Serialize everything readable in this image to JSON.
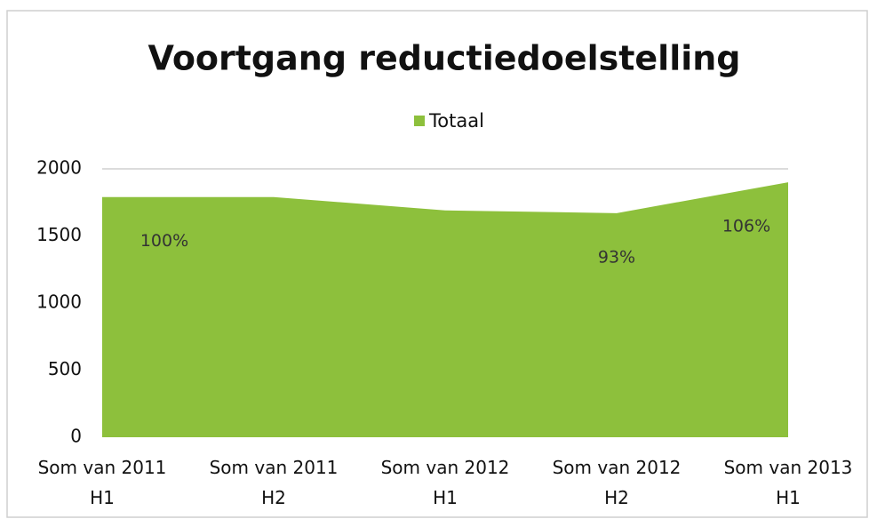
{
  "chart_data": {
    "type": "area",
    "title": "Voortgang reductiedoelstelling",
    "categories": [
      "Som van 2011 H1",
      "Som van 2011 H2",
      "Som van 2012 H1",
      "Som van 2012 H2",
      "Som van 2013 H1"
    ],
    "series": [
      {
        "name": "Totaal",
        "color": "#8dc03c",
        "values": [
          1790,
          1790,
          1690,
          1670,
          1900
        ]
      }
    ],
    "annotations": [
      {
        "text": "100%",
        "at": 0
      },
      {
        "text": "93%",
        "at": 3
      },
      {
        "text": "106%",
        "at": 4
      }
    ],
    "ylim": [
      0,
      2000
    ],
    "yticks": [
      0,
      500,
      1000,
      1500,
      2000
    ],
    "legend": "top"
  }
}
